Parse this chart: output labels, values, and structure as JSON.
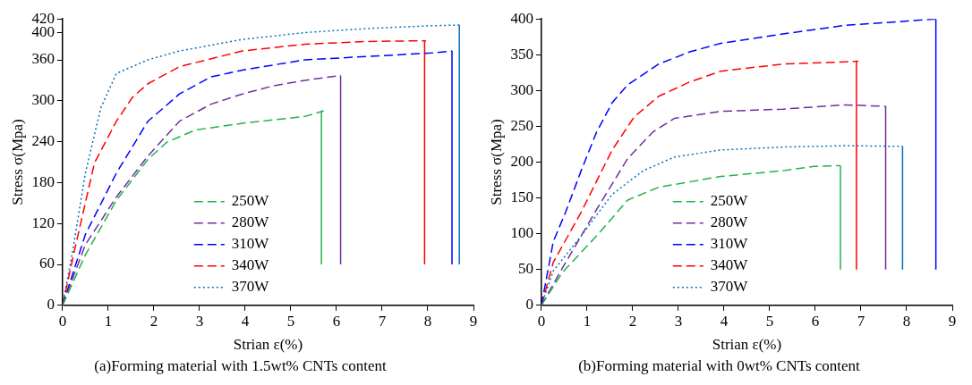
{
  "chart_data": [
    {
      "type": "line",
      "title": "(a)Forming material with 1.5wt% CNTs content",
      "xlabel": "Strian ε(%)",
      "ylabel": "Stress σ(Mpa)",
      "xlim": [
        0,
        9
      ],
      "xticks": [
        0,
        1,
        2,
        3,
        4,
        5,
        6,
        7,
        8,
        9
      ],
      "ylim": [
        0,
        420
      ],
      "yticks": [
        0,
        60,
        120,
        180,
        240,
        300,
        360,
        400,
        420
      ],
      "grid": false,
      "legend": "bottom",
      "marker": "none",
      "line_style": "dashed",
      "series": [
        {
          "name": "250W",
          "color": "#22b14c",
          "x": [
            0,
            0.5,
            1.18,
            1.87,
            2.28,
            2.9,
            3.94,
            5.31,
            5.71,
            5.67,
            5.67
          ],
          "values": [
            0,
            74,
            154,
            214,
            239,
            257,
            267,
            277,
            285,
            285,
            60
          ]
        },
        {
          "name": "280W",
          "color": "#7030a0",
          "x": [
            0,
            0.5,
            1.18,
            1.87,
            2.56,
            3.25,
            3.94,
            4.62,
            5.31,
            6.09,
            6.09
          ],
          "values": [
            0,
            89,
            159,
            219,
            270,
            295,
            310,
            322,
            330,
            337,
            60
          ]
        },
        {
          "name": "310W",
          "color": "#0000ff",
          "x": [
            0,
            0.5,
            1.18,
            1.87,
            2.22,
            2.56,
            3.25,
            3.94,
            5.31,
            6.69,
            8.07,
            8.53,
            8.53
          ],
          "values": [
            0,
            104,
            194,
            270,
            290,
            310,
            335,
            345,
            360,
            365,
            370,
            373,
            60
          ]
        },
        {
          "name": "340W",
          "color": "#ff0000",
          "x": [
            0,
            0.29,
            0.7,
            1.18,
            1.53,
            1.87,
            2.56,
            3.94,
            5.31,
            6.69,
            7.95,
            7.93,
            7.93
          ],
          "values": [
            0,
            89,
            209,
            270,
            305,
            325,
            350,
            373,
            383,
            387,
            388,
            388,
            60
          ]
        },
        {
          "name": "370W",
          "color": "#0070c0",
          "line_style": "dotted",
          "x": [
            0,
            0.22,
            0.5,
            0.84,
            1.18,
            1.87,
            2.56,
            3.94,
            5.31,
            6.69,
            8.07,
            8.69,
            8.69
          ],
          "values": [
            0,
            79,
            194,
            290,
            340,
            360,
            373,
            390,
            400,
            406,
            410,
            411,
            60
          ]
        }
      ]
    },
    {
      "type": "line",
      "title": "(b)Forming material with 0wt% CNTs content",
      "xlabel": "Strian ε(%)",
      "ylabel": "Stress σ(Mpa)",
      "xlim": [
        0,
        9
      ],
      "xticks": [
        0,
        1,
        2,
        3,
        4,
        5,
        6,
        7,
        8,
        9
      ],
      "ylim": [
        0,
        400
      ],
      "yticks": [
        0,
        50,
        100,
        150,
        200,
        250,
        300,
        350,
        400
      ],
      "grid": false,
      "legend": "bottom",
      "marker": "none",
      "line_style": "dashed",
      "series": [
        {
          "name": "250W",
          "color": "#22b14c",
          "x": [
            0,
            0.46,
            1.21,
            1.89,
            2.57,
            3.93,
            5.29,
            5.97,
            6.43,
            6.55,
            6.55
          ],
          "values": [
            0,
            46,
            97,
            147,
            165,
            180,
            188,
            194,
            195,
            195,
            50
          ]
        },
        {
          "name": "280W",
          "color": "#7030a0",
          "x": [
            0,
            0.46,
            1.21,
            1.89,
            2.44,
            2.91,
            3.93,
            5.29,
            6.65,
            7.54,
            7.54
          ],
          "values": [
            0,
            52,
            134,
            205,
            242,
            261,
            271,
            274,
            280,
            278,
            50
          ]
        },
        {
          "name": "310W",
          "color": "#0000ff",
          "x": [
            0,
            0.26,
            0.53,
            0.87,
            1.21,
            1.55,
            1.89,
            2.57,
            3.25,
            3.93,
            5.29,
            6.65,
            8.01,
            8.64,
            8.64
          ],
          "values": [
            0,
            89,
            130,
            188,
            242,
            283,
            308,
            337,
            354,
            366,
            379,
            391,
            397,
            400,
            50
          ]
        },
        {
          "name": "340W",
          "color": "#ff0000",
          "x": [
            0,
            0.26,
            0.87,
            1.55,
            2.03,
            2.57,
            3.25,
            3.93,
            5.29,
            6.65,
            6.93,
            6.9,
            6.9
          ],
          "values": [
            0,
            60,
            130,
            217,
            263,
            292,
            312,
            327,
            337,
            340,
            341,
            341,
            50
          ]
        },
        {
          "name": "370W",
          "color": "#0070c0",
          "line_style": "dotted",
          "x": [
            0,
            0.26,
            0.87,
            1.55,
            2.23,
            2.91,
            3.93,
            5.29,
            6.65,
            7.91,
            7.91
          ],
          "values": [
            0,
            48,
            97,
            155,
            188,
            207,
            217,
            221,
            223,
            222,
            50
          ]
        }
      ]
    }
  ]
}
